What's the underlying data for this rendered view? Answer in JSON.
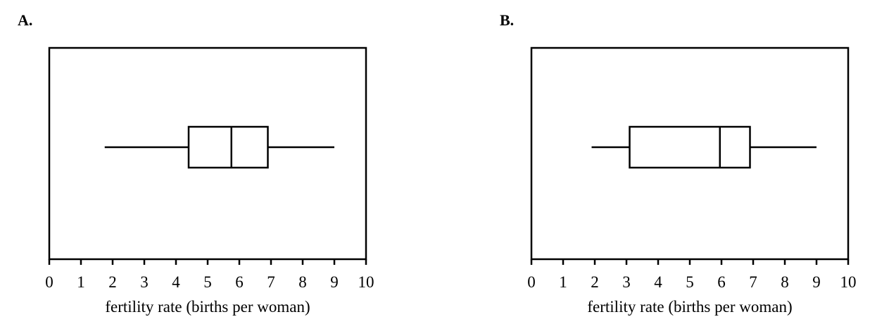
{
  "chart_data": [
    {
      "type": "box",
      "title": "A.",
      "xlabel": "fertility rate (births per woman)",
      "xlim": [
        0,
        10
      ],
      "xticks": [
        0,
        1,
        2,
        3,
        4,
        5,
        6,
        7,
        8,
        9,
        10
      ],
      "box": {
        "min": 1.75,
        "q1": 4.4,
        "median": 5.75,
        "q3": 6.9,
        "max": 9
      }
    },
    {
      "type": "box",
      "title": "B.",
      "xlabel": "fertility rate (births per woman)",
      "xlim": [
        0,
        10
      ],
      "xticks": [
        0,
        1,
        2,
        3,
        4,
        5,
        6,
        7,
        8,
        9,
        10
      ],
      "box": {
        "min": 1.9,
        "q1": 3.1,
        "median": 5.95,
        "q3": 6.9,
        "max": 9
      }
    }
  ]
}
